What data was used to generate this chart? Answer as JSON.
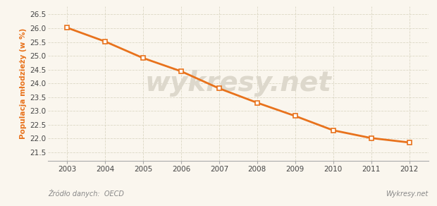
{
  "years": [
    2003,
    2004,
    2005,
    2006,
    2007,
    2008,
    2009,
    2010,
    2011,
    2012
  ],
  "values": [
    26.02,
    25.52,
    24.92,
    24.44,
    23.82,
    23.3,
    22.82,
    22.3,
    22.02,
    21.86
  ],
  "line_color": "#E8721C",
  "marker_style": "s",
  "marker_facecolor": "white",
  "marker_edgecolor": "#E8721C",
  "marker_size": 4,
  "line_width": 2.0,
  "ylabel": "Populacja młodzieży (w %)",
  "ylabel_color": "#E8721C",
  "bg_color": "#FAF6EE",
  "plot_bg_color": "#FAF6EE",
  "grid_color": "#D8D4C0",
  "axis_color": "#AAAAAA",
  "tick_color": "#444444",
  "ylim": [
    21.2,
    26.8
  ],
  "yticks": [
    21.5,
    22.0,
    22.5,
    23.0,
    23.5,
    24.0,
    24.5,
    25.0,
    25.5,
    26.0,
    26.5
  ],
  "source_text": "Źródło danych:  OECD",
  "watermark_text": "wykresy.net",
  "watermark_color": "#DDD8CC",
  "source_color": "#888888",
  "font_size_ticks": 7.5,
  "font_size_ylabel": 7.5,
  "font_size_source": 7.0,
  "watermark_fontsize": 28
}
